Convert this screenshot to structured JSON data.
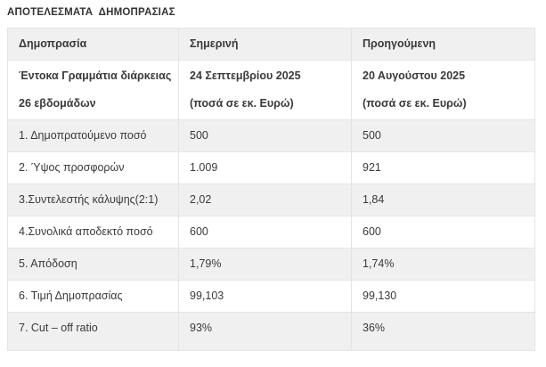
{
  "page": {
    "title": "ΑΠΟΤΕΛΕΣΜΑΤΑ  ΔΗΜΟΠΡΑΣΙΑΣ"
  },
  "colors": {
    "stripe_background": "#f0f0f0",
    "border": "#e4e4e4",
    "text": "#3a3a3a",
    "page_background": "#ffffff"
  },
  "table": {
    "headers": [
      "Δημοπρασία",
      "Σημερινή",
      "Προηγούμενη"
    ],
    "subheader": {
      "label_line1": "Έντοκα Γραμμάτια διάρκειας",
      "label_line2": "26 εβδομάδων",
      "current_line1": "24 Σεπτεμβρίου 2025",
      "current_line2": "(ποσά σε εκ. Ευρώ)",
      "previous_line1": "20 Αυγούστου 2025",
      "previous_line2": "(ποσά σε εκ. Ευρώ)"
    },
    "rows": [
      {
        "label": "1. Δημοπρατούμενο ποσό",
        "current": "500",
        "previous": "500"
      },
      {
        "label": "2. Ύψος προσφορών",
        "current": "1.009",
        "previous": "921"
      },
      {
        "label": "3.Συντελεστής κάλυψης(2:1)",
        "current": "2,02",
        "previous": "1,84"
      },
      {
        "label": "4.Συνολικά αποδεκτό ποσό",
        "current": "600",
        "previous": "600"
      },
      {
        "label": "5. Απόδοση",
        "current": "1,79%",
        "previous": "1,74%"
      },
      {
        "label": "6. Τιμή Δημοπρασίας",
        "current": "99,103",
        "previous": "99,130"
      },
      {
        "label": "7. Cut – off ratio",
        "current": "93%",
        "previous": "36%"
      }
    ]
  }
}
